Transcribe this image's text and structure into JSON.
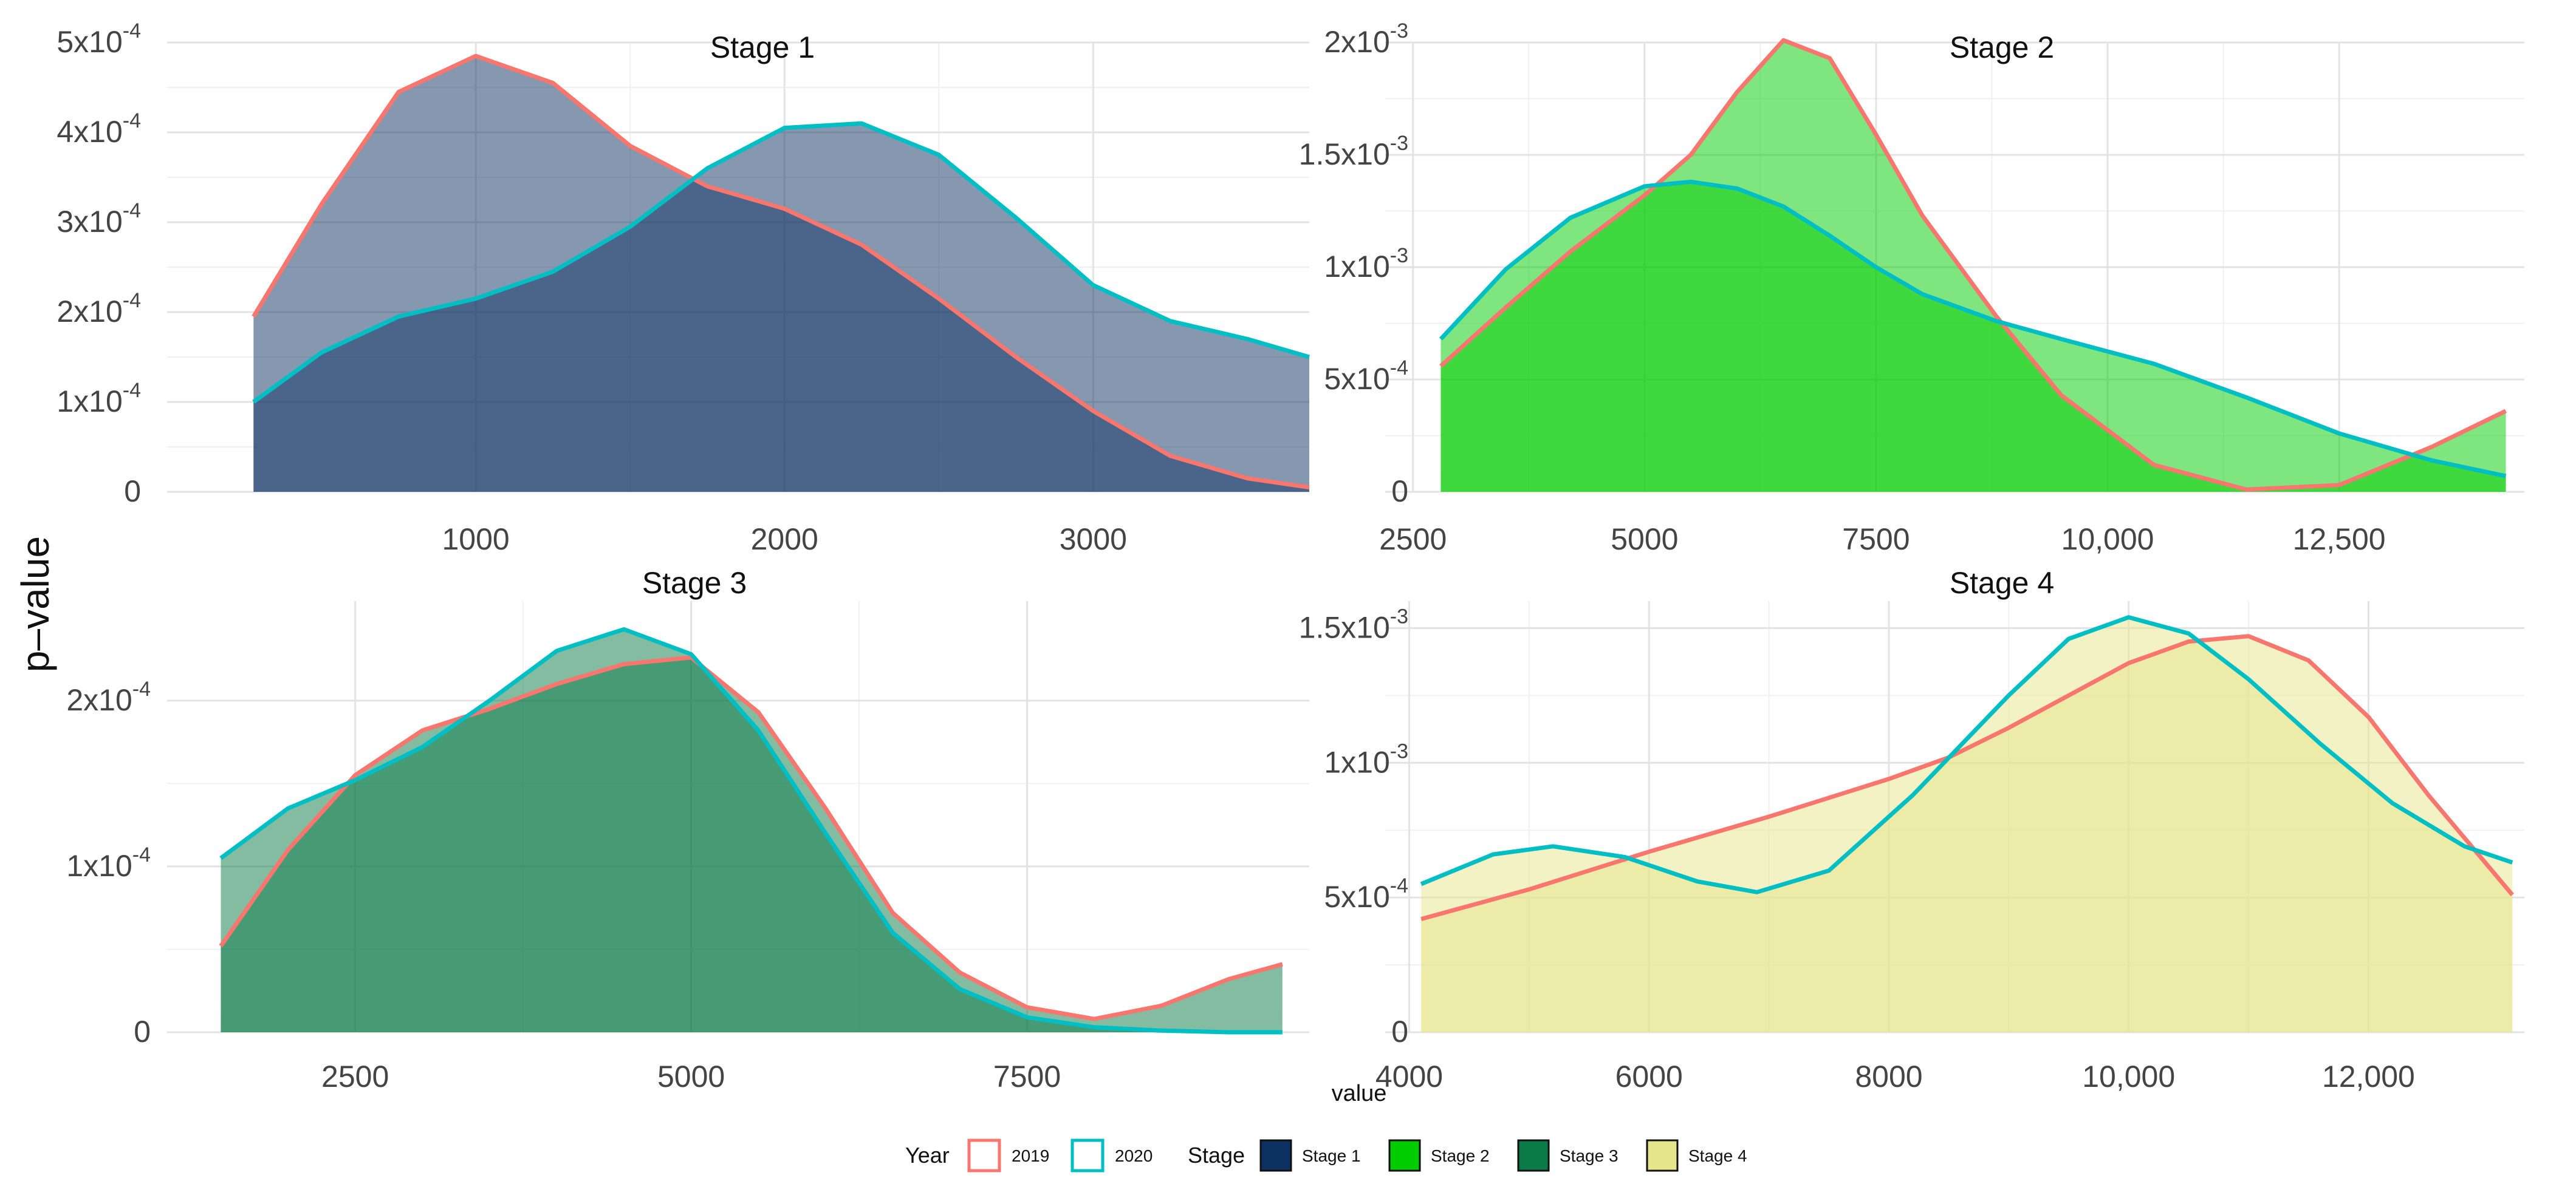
{
  "ylabel": "p–value",
  "xlabel": "value",
  "legend": {
    "year_title": "Year",
    "years": [
      {
        "label": "2019",
        "color": "#f8766d"
      },
      {
        "label": "2020",
        "color": "#00bfc4"
      }
    ],
    "stage_title": "Stage",
    "stages": [
      {
        "label": "Stage 1",
        "color": "#0d3161"
      },
      {
        "label": "Stage 2",
        "color": "#00cc00"
      },
      {
        "label": "Stage 3",
        "color": "#0a7a46"
      },
      {
        "label": "Stage 4",
        "color": "#e5e58c"
      }
    ]
  },
  "chart_data": [
    {
      "type": "area",
      "title": "Stage 1",
      "fill": "#0d3161",
      "xlim": [
        0,
        3700
      ],
      "ylim": [
        0,
        0.0005
      ],
      "xticks": [
        {
          "v": 1000,
          "label": "1000"
        },
        {
          "v": 2000,
          "label": "2000"
        },
        {
          "v": 3000,
          "label": "3000"
        }
      ],
      "yticks": [
        {
          "v": 0,
          "label": "0"
        },
        {
          "v": 0.0001,
          "base": "1x10",
          "exp": "-4"
        },
        {
          "v": 0.0002,
          "base": "2x10",
          "exp": "-4"
        },
        {
          "v": 0.0003,
          "base": "3x10",
          "exp": "-4"
        },
        {
          "v": 0.0004,
          "base": "4x10",
          "exp": "-4"
        },
        {
          "v": 0.0005,
          "base": "5x10",
          "exp": "-4"
        }
      ],
      "series": [
        {
          "name": "2019",
          "x": [
            280,
            500,
            750,
            1000,
            1250,
            1500,
            1750,
            2000,
            2250,
            2500,
            2750,
            3000,
            3250,
            3500,
            3700
          ],
          "y": [
            0.000195,
            0.00032,
            0.000445,
            0.000485,
            0.000455,
            0.000385,
            0.00034,
            0.000315,
            0.000275,
            0.000215,
            0.00015,
            9e-05,
            4e-05,
            1.5e-05,
            5e-06
          ]
        },
        {
          "name": "2020",
          "x": [
            280,
            500,
            750,
            1000,
            1250,
            1500,
            1750,
            2000,
            2250,
            2500,
            2750,
            3000,
            3250,
            3500,
            3700
          ],
          "y": [
            0.0001,
            0.000155,
            0.000195,
            0.000215,
            0.000245,
            0.000295,
            0.00036,
            0.000405,
            0.00041,
            0.000375,
            0.000305,
            0.00023,
            0.00019,
            0.00017,
            0.00015
          ]
        }
      ]
    },
    {
      "type": "area",
      "title": "Stage 2",
      "fill": "#00cc00",
      "xlim": [
        2200,
        14500
      ],
      "ylim": [
        0,
        0.002
      ],
      "xticks": [
        {
          "v": 2500,
          "label": "2500"
        },
        {
          "v": 5000,
          "label": "5000"
        },
        {
          "v": 7500,
          "label": "7500"
        },
        {
          "v": 10000,
          "label": "10,000"
        },
        {
          "v": 12500,
          "label": "12,500"
        }
      ],
      "yticks": [
        {
          "v": 0,
          "label": "0"
        },
        {
          "v": 0.0005,
          "base": "5x10",
          "exp": "-4"
        },
        {
          "v": 0.001,
          "base": "1x10",
          "exp": "-3"
        },
        {
          "v": 0.0015,
          "base": "1.5x10",
          "exp": "-3"
        },
        {
          "v": 0.002,
          "base": "2x10",
          "exp": "-3"
        }
      ],
      "series": [
        {
          "name": "2019",
          "x": [
            2800,
            3500,
            4200,
            5000,
            5500,
            6000,
            6500,
            7000,
            7500,
            8000,
            8800,
            9500,
            10500,
            11500,
            12500,
            13500,
            14300
          ],
          "y": [
            0.00056,
            0.00082,
            0.00107,
            0.00132,
            0.0015,
            0.00178,
            0.00201,
            0.00193,
            0.00159,
            0.00123,
            0.00078,
            0.00043,
            0.00012,
            1e-05,
            3e-05,
            0.0002,
            0.00036
          ]
        },
        {
          "name": "2020",
          "x": [
            2800,
            3500,
            4200,
            5000,
            5500,
            6000,
            6500,
            7000,
            7500,
            8000,
            8800,
            9500,
            10500,
            11500,
            12500,
            13500,
            14300
          ],
          "y": [
            0.00068,
            0.00099,
            0.00122,
            0.00136,
            0.00138,
            0.00135,
            0.00127,
            0.00114,
            0.001,
            0.00088,
            0.00076,
            0.00068,
            0.00057,
            0.00042,
            0.00026,
            0.00014,
            7e-05
          ]
        }
      ]
    },
    {
      "type": "area",
      "title": "Stage 3",
      "fill": "#0a7a46",
      "xlim": [
        1100,
        9600
      ],
      "ylim": [
        0,
        0.00026
      ],
      "xticks": [
        {
          "v": 2500,
          "label": "2500"
        },
        {
          "v": 5000,
          "label": "5000"
        },
        {
          "v": 7500,
          "label": "7500"
        }
      ],
      "yticks": [
        {
          "v": 0,
          "label": "0"
        },
        {
          "v": 0.0001,
          "base": "1x10",
          "exp": "-4"
        },
        {
          "v": 0.0002,
          "base": "2x10",
          "exp": "-4"
        }
      ],
      "series": [
        {
          "name": "2019",
          "x": [
            1500,
            2000,
            2500,
            3000,
            3500,
            4000,
            4500,
            5000,
            5500,
            6000,
            6500,
            7000,
            7500,
            8000,
            8500,
            9000,
            9400
          ],
          "y": [
            5.2e-05,
            0.00011,
            0.000155,
            0.000182,
            0.000195,
            0.00021,
            0.000222,
            0.000226,
            0.000193,
            0.000135,
            7.2e-05,
            3.6e-05,
            1.5e-05,
            8e-06,
            1.6e-05,
            3.2e-05,
            4.1e-05
          ]
        },
        {
          "name": "2020",
          "x": [
            1500,
            2000,
            2500,
            3000,
            3500,
            4000,
            4500,
            5000,
            5500,
            6000,
            6500,
            7000,
            7500,
            8000,
            8500,
            9000,
            9400
          ],
          "y": [
            0.000105,
            0.000135,
            0.000152,
            0.000172,
            0.0002,
            0.00023,
            0.000243,
            0.000228,
            0.000182,
            0.00012,
            6e-05,
            2.6e-05,
            9e-06,
            3e-06,
            1e-06,
            0.0,
            0.0
          ]
        }
      ]
    },
    {
      "type": "area",
      "title": "Stage 4",
      "fill": "#e5e58c",
      "xlim": [
        3800,
        13300
      ],
      "ylim": [
        0,
        0.0016
      ],
      "xticks": [
        {
          "v": 4000,
          "label": "4000"
        },
        {
          "v": 6000,
          "label": "6000"
        },
        {
          "v": 8000,
          "label": "8000"
        },
        {
          "v": 10000,
          "label": "10,000"
        },
        {
          "v": 12000,
          "label": "12,000"
        }
      ],
      "yticks": [
        {
          "v": 0,
          "label": "0"
        },
        {
          "v": 0.0005,
          "base": "5x10",
          "exp": "-4"
        },
        {
          "v": 0.001,
          "base": "1x10",
          "exp": "-3"
        },
        {
          "v": 0.0015,
          "base": "1.5x10",
          "exp": "-3"
        }
      ],
      "series": [
        {
          "name": "2019",
          "x": [
            4100,
            5000,
            6000,
            7000,
            8000,
            8500,
            9000,
            9500,
            10000,
            10500,
            11000,
            11500,
            12000,
            12500,
            13200
          ],
          "y": [
            0.00042,
            0.00053,
            0.00067,
            0.0008,
            0.00094,
            0.00102,
            0.00113,
            0.00125,
            0.00137,
            0.00145,
            0.00147,
            0.00138,
            0.00117,
            0.00088,
            0.00051
          ]
        },
        {
          "name": "2020",
          "x": [
            4100,
            4700,
            5200,
            5800,
            6400,
            6900,
            7500,
            8200,
            9000,
            9500,
            10000,
            10500,
            11000,
            11600,
            12200,
            12800,
            13200
          ],
          "y": [
            0.00055,
            0.00066,
            0.00069,
            0.00065,
            0.00056,
            0.00052,
            0.0006,
            0.00088,
            0.00125,
            0.00146,
            0.00154,
            0.00148,
            0.00131,
            0.00107,
            0.00085,
            0.00069,
            0.00063
          ]
        }
      ]
    }
  ]
}
